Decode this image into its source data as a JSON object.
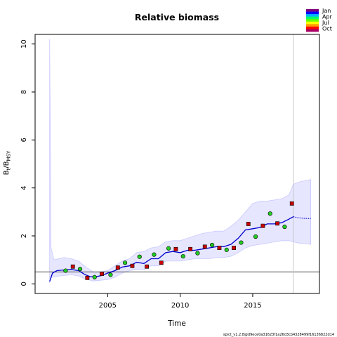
{
  "chart_data": {
    "type": "line",
    "title": "Relative biomass",
    "xlabel": "Time",
    "ylabel": "B",
    "ylabel_sub1": "t",
    "ylabel_mid": "/B",
    "ylabel_sub2": "MSY",
    "xlim": [
      2000.0,
      2019.6
    ],
    "ylim": [
      -0.4,
      10.4
    ],
    "x_ticks": [
      2005,
      2010,
      2015
    ],
    "y_ticks": [
      0,
      2,
      4,
      6,
      8,
      10
    ],
    "reference_line_y": 0.5,
    "vertical_line_x": 2017.8,
    "legend": {
      "labels": [
        "Jan",
        "Apr",
        "Jul",
        "Oct"
      ],
      "colors": [
        "#800080",
        "#0000ff",
        "#00b4ff",
        "#00ff66",
        "#66ff00",
        "#ffff00",
        "#ff9900",
        "#ff0000",
        "#aa0066"
      ]
    },
    "series": [
      {
        "role": "median",
        "color": "#0000cc",
        "x": [
          2001.0,
          2001.2,
          2001.5,
          2002.0,
          2002.5,
          2003.0,
          2003.4,
          2003.8,
          2004.2,
          2004.6,
          2005.0,
          2005.5,
          2006.0,
          2006.5,
          2007.0,
          2007.5,
          2008.0,
          2008.5,
          2009.0,
          2009.5,
          2010.0,
          2010.5,
          2011.0,
          2011.5,
          2012.0,
          2012.5,
          2013.0,
          2013.5,
          2014.0,
          2014.5,
          2015.0,
          2015.5,
          2016.0,
          2016.5,
          2017.0,
          2017.5,
          2017.8
        ],
        "y": [
          0.1,
          0.45,
          0.55,
          0.58,
          0.6,
          0.55,
          0.4,
          0.3,
          0.3,
          0.35,
          0.45,
          0.55,
          0.7,
          0.75,
          0.9,
          0.85,
          1.05,
          1.05,
          1.3,
          1.35,
          1.3,
          1.4,
          1.4,
          1.45,
          1.5,
          1.55,
          1.55,
          1.65,
          1.9,
          2.25,
          2.3,
          2.35,
          2.5,
          2.5,
          2.55,
          2.7,
          2.8
        ]
      },
      {
        "role": "forecast",
        "color": "#0000cc",
        "x": [
          2017.8,
          2018.2,
          2018.6,
          2019.0
        ],
        "y": [
          2.8,
          2.75,
          2.73,
          2.72
        ]
      }
    ],
    "ci_band": {
      "color": "#e6e6ff",
      "x": [
        2001.0,
        2001.1,
        2001.3,
        2002.0,
        2002.5,
        2003.0,
        2003.5,
        2004.0,
        2004.5,
        2005.0,
        2005.5,
        2006.0,
        2006.5,
        2007.0,
        2007.5,
        2008.0,
        2008.5,
        2009.0,
        2009.5,
        2010.0,
        2010.5,
        2011.0,
        2011.5,
        2012.0,
        2012.5,
        2013.0,
        2013.5,
        2014.0,
        2014.5,
        2015.0,
        2015.5,
        2016.0,
        2016.5,
        2017.0,
        2017.5,
        2017.8,
        2018.2,
        2018.6,
        2019.0
      ],
      "upper": [
        10.2,
        1.5,
        1.0,
        1.1,
        1.05,
        0.95,
        0.7,
        0.5,
        0.5,
        0.55,
        0.75,
        0.95,
        1.05,
        1.3,
        1.35,
        1.5,
        1.55,
        1.75,
        1.8,
        1.8,
        1.9,
        2.0,
        2.1,
        2.15,
        2.2,
        2.2,
        2.4,
        2.65,
        3.0,
        3.35,
        3.45,
        3.45,
        3.5,
        3.55,
        3.7,
        4.15,
        4.25,
        4.3,
        4.35
      ],
      "lower": [
        0.05,
        0.25,
        0.3,
        0.35,
        0.38,
        0.33,
        0.2,
        0.12,
        0.15,
        0.18,
        0.28,
        0.45,
        0.55,
        0.6,
        0.6,
        0.75,
        0.75,
        0.95,
        0.95,
        0.95,
        1.0,
        1.05,
        1.05,
        1.05,
        1.1,
        1.1,
        1.15,
        1.3,
        1.5,
        1.6,
        1.65,
        1.7,
        1.75,
        1.8,
        1.8,
        1.75,
        1.7,
        1.68,
        1.65
      ]
    },
    "observations": [
      {
        "x": 2002.1,
        "y": 0.55,
        "color": "#22cc22"
      },
      {
        "x": 2002.6,
        "y": 0.72,
        "color": "#cc0000"
      },
      {
        "x": 2003.1,
        "y": 0.62,
        "color": "#22cc22"
      },
      {
        "x": 2003.6,
        "y": 0.25,
        "color": "#cc0000"
      },
      {
        "x": 2004.1,
        "y": 0.28,
        "color": "#22cc22"
      },
      {
        "x": 2004.6,
        "y": 0.42,
        "color": "#cc0000"
      },
      {
        "x": 2005.2,
        "y": 0.38,
        "color": "#22cc22"
      },
      {
        "x": 2005.7,
        "y": 0.68,
        "color": "#cc0000"
      },
      {
        "x": 2006.2,
        "y": 0.88,
        "color": "#22cc22"
      },
      {
        "x": 2006.7,
        "y": 0.75,
        "color": "#cc0000"
      },
      {
        "x": 2007.2,
        "y": 1.13,
        "color": "#22cc22"
      },
      {
        "x": 2007.7,
        "y": 0.72,
        "color": "#cc0000"
      },
      {
        "x": 2008.2,
        "y": 1.22,
        "color": "#22cc22"
      },
      {
        "x": 2008.7,
        "y": 0.88,
        "color": "#cc0000"
      },
      {
        "x": 2009.2,
        "y": 1.48,
        "color": "#22cc22"
      },
      {
        "x": 2009.7,
        "y": 1.45,
        "color": "#cc0000"
      },
      {
        "x": 2010.2,
        "y": 1.15,
        "color": "#22cc22"
      },
      {
        "x": 2010.7,
        "y": 1.45,
        "color": "#cc0000"
      },
      {
        "x": 2011.2,
        "y": 1.28,
        "color": "#22cc22"
      },
      {
        "x": 2011.7,
        "y": 1.55,
        "color": "#cc0000"
      },
      {
        "x": 2012.2,
        "y": 1.62,
        "color": "#22cc22"
      },
      {
        "x": 2012.7,
        "y": 1.5,
        "color": "#cc0000"
      },
      {
        "x": 2013.2,
        "y": 1.42,
        "color": "#22cc22"
      },
      {
        "x": 2013.7,
        "y": 1.5,
        "color": "#cc0000"
      },
      {
        "x": 2014.2,
        "y": 1.72,
        "color": "#22cc22"
      },
      {
        "x": 2014.7,
        "y": 2.5,
        "color": "#cc0000"
      },
      {
        "x": 2015.2,
        "y": 1.97,
        "color": "#22cc22"
      },
      {
        "x": 2015.7,
        "y": 2.42,
        "color": "#cc0000"
      },
      {
        "x": 2016.2,
        "y": 2.93,
        "color": "#22cc22"
      },
      {
        "x": 2016.7,
        "y": 2.52,
        "color": "#cc0000"
      },
      {
        "x": 2017.2,
        "y": 2.38,
        "color": "#22cc22"
      },
      {
        "x": 2017.7,
        "y": 3.35,
        "color": "#cc0000"
      }
    ],
    "grid": false,
    "legend_position": "top-right"
  },
  "footer_text": "spict_v1.2.8@d9ece0a31623f1a26d3cb4328499f16136822d14"
}
